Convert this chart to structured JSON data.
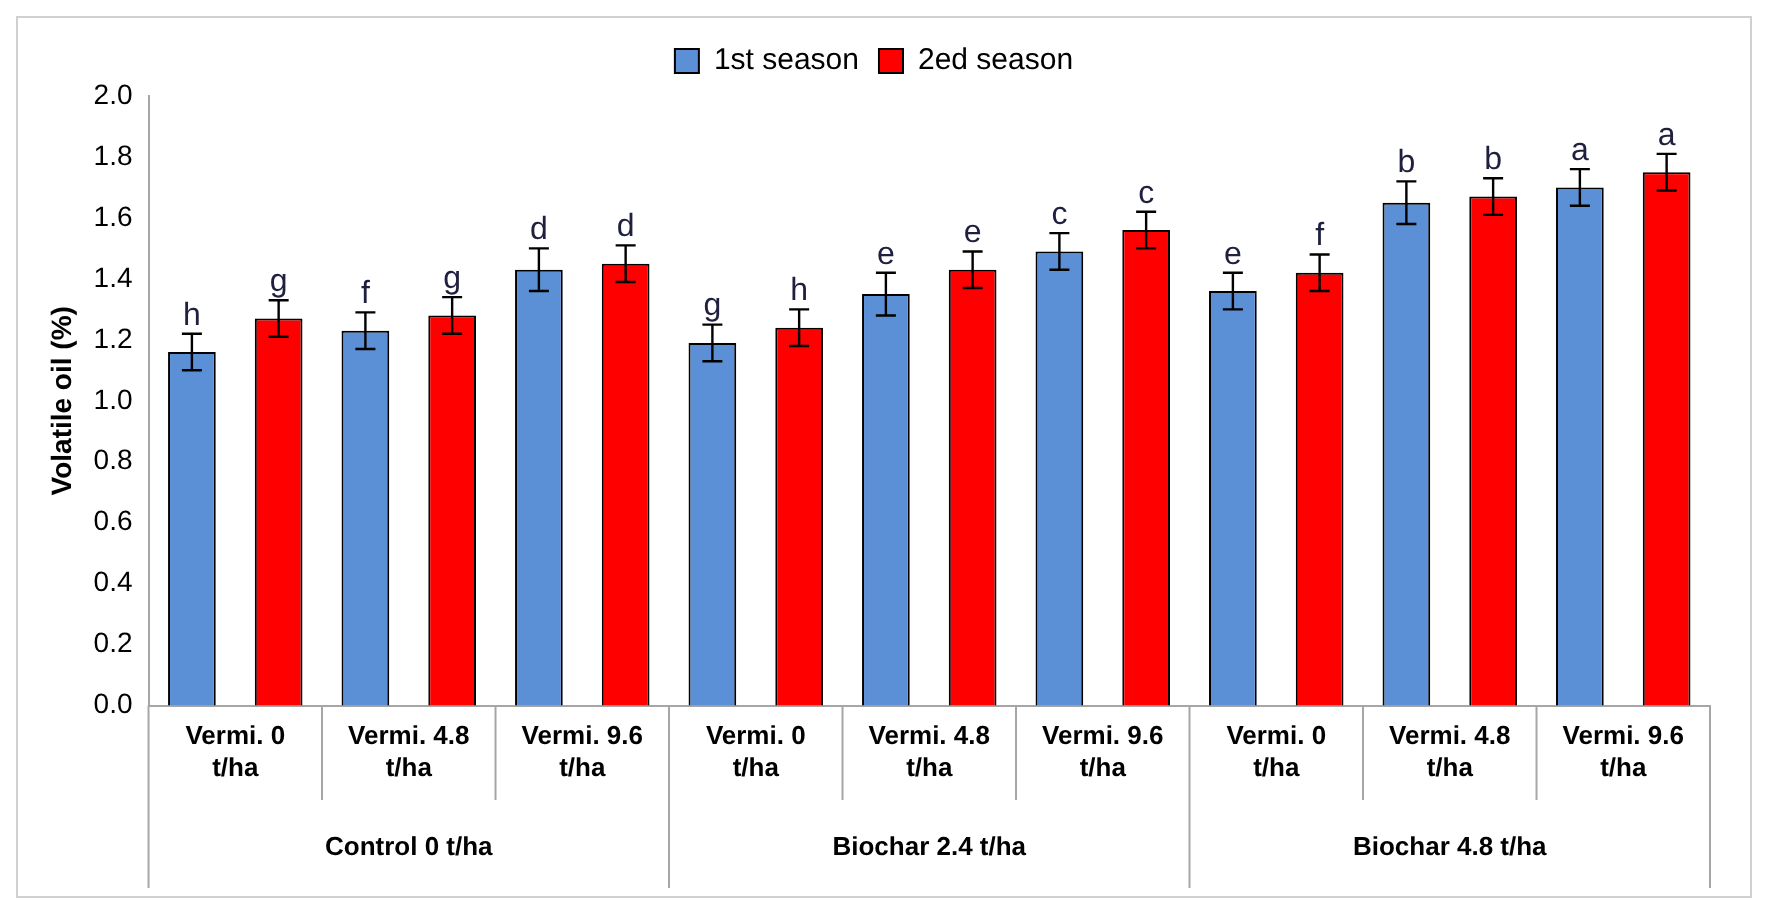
{
  "chart_data": {
    "type": "bar",
    "ylabel": "Volatile oil (%)",
    "categories": [
      "Vermi. 0 t/ha",
      "Vermi. 4.8 t/ha",
      "Vermi. 9.6 t/ha",
      "Vermi. 0 t/ha",
      "Vermi. 4.8 t/ha",
      "Vermi. 9.6 t/ha",
      "Vermi. 0 t/ha",
      "Vermi. 4.8 t/ha",
      "Vermi. 9.6 t/ha"
    ],
    "series": [
      {
        "name": "1st season",
        "color": "#5b8fd6",
        "values": [
          1.16,
          1.23,
          1.43,
          1.19,
          1.35,
          1.49,
          1.36,
          1.65,
          1.7
        ],
        "errors": [
          0.06,
          0.06,
          0.07,
          0.06,
          0.07,
          0.06,
          0.06,
          0.07,
          0.06
        ],
        "value_labels": [
          "h",
          "f",
          "d",
          "g",
          "e",
          "c",
          "e",
          "b",
          "a"
        ]
      },
      {
        "name": "2ed season",
        "color": "#ff0000",
        "values": [
          1.27,
          1.28,
          1.45,
          1.24,
          1.43,
          1.56,
          1.42,
          1.67,
          1.75
        ],
        "errors": [
          0.06,
          0.06,
          0.06,
          0.06,
          0.06,
          0.06,
          0.06,
          0.06,
          0.06
        ],
        "value_labels": [
          "g",
          "g",
          "d",
          "h",
          "e",
          "c",
          "f",
          "b",
          "a"
        ]
      }
    ],
    "annotations": [
      "Control 0 t/ha",
      "Biochar 2.4 t/ha",
      "Biochar 4.8 t/ha"
    ],
    "ylim": [
      0,
      2.0
    ],
    "yticks": [
      {
        "value": 0,
        "label": "0.0"
      },
      {
        "value": 0.2,
        "label": "0.2"
      },
      {
        "value": 0.4,
        "label": "0.4"
      },
      {
        "value": 0.6,
        "label": "0.6"
      },
      {
        "value": 0.8,
        "label": "0.8"
      },
      {
        "value": 1.0,
        "label": "1.0"
      },
      {
        "value": 1.2,
        "label": "1.2"
      },
      {
        "value": 1.4,
        "label": "1.4"
      },
      {
        "value": 1.6,
        "label": "1.6"
      },
      {
        "value": 1.8,
        "label": "1.8"
      },
      {
        "value": 2.0,
        "label": "2.0"
      }
    ],
    "grid": false,
    "legend": "top"
  }
}
